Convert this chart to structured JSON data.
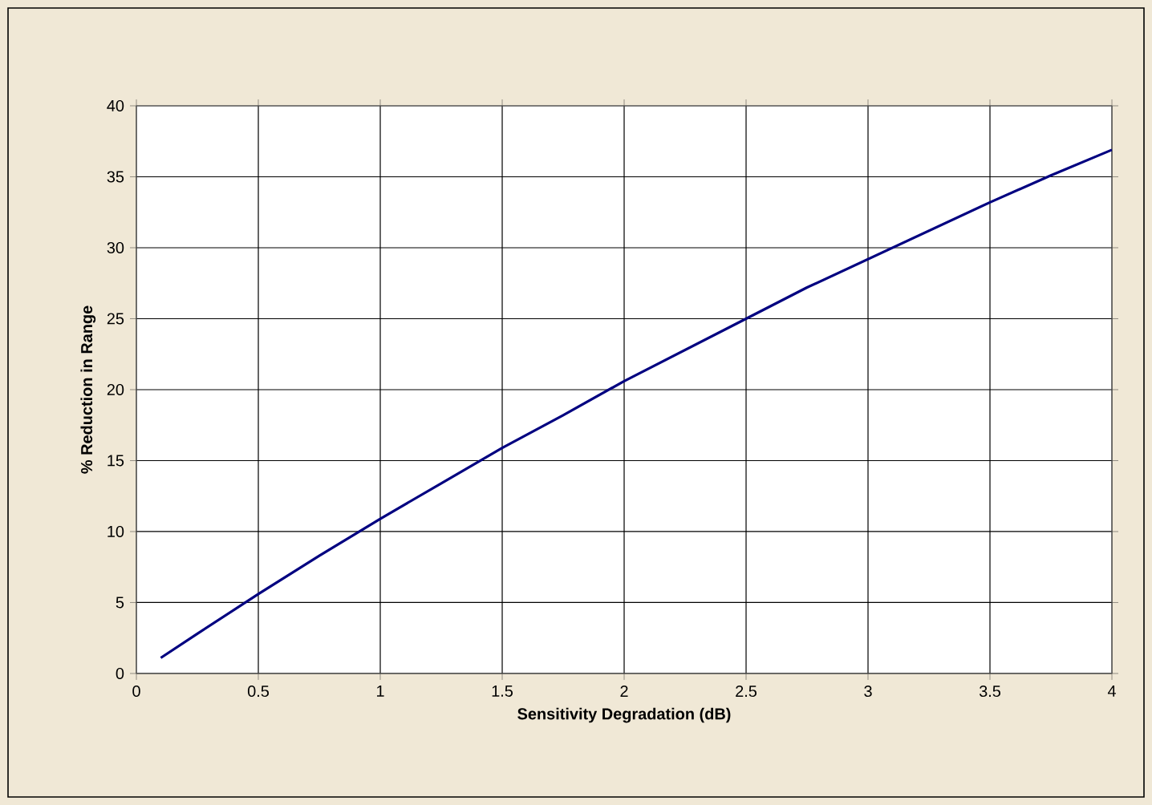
{
  "chart_data": {
    "type": "line",
    "xlabel": "Sensitivity Degradation (dB)",
    "ylabel": "% Reduction in Range",
    "x": [
      0.1,
      0.25,
      0.5,
      0.75,
      1,
      1.25,
      1.5,
      1.75,
      2,
      2.25,
      2.5,
      2.75,
      3,
      3.25,
      3.5,
      3.75,
      4
    ],
    "series": [
      {
        "color": "#000080",
        "values": [
          1.1,
          2.8,
          5.6,
          8.3,
          10.9,
          13.4,
          15.9,
          18.2,
          20.6,
          22.8,
          25,
          27.2,
          29.2,
          31.2,
          33.2,
          35.1,
          36.9
        ]
      }
    ],
    "xlim": [
      0,
      4
    ],
    "xticks": [
      0,
      0.5,
      1,
      1.5,
      2,
      2.5,
      3,
      3.5,
      4
    ],
    "ylim": [
      0,
      40
    ],
    "yticks": [
      0,
      5,
      10,
      15,
      20,
      25,
      30,
      35,
      40
    ],
    "grid": true,
    "marker": "none",
    "line_style": "solid"
  }
}
